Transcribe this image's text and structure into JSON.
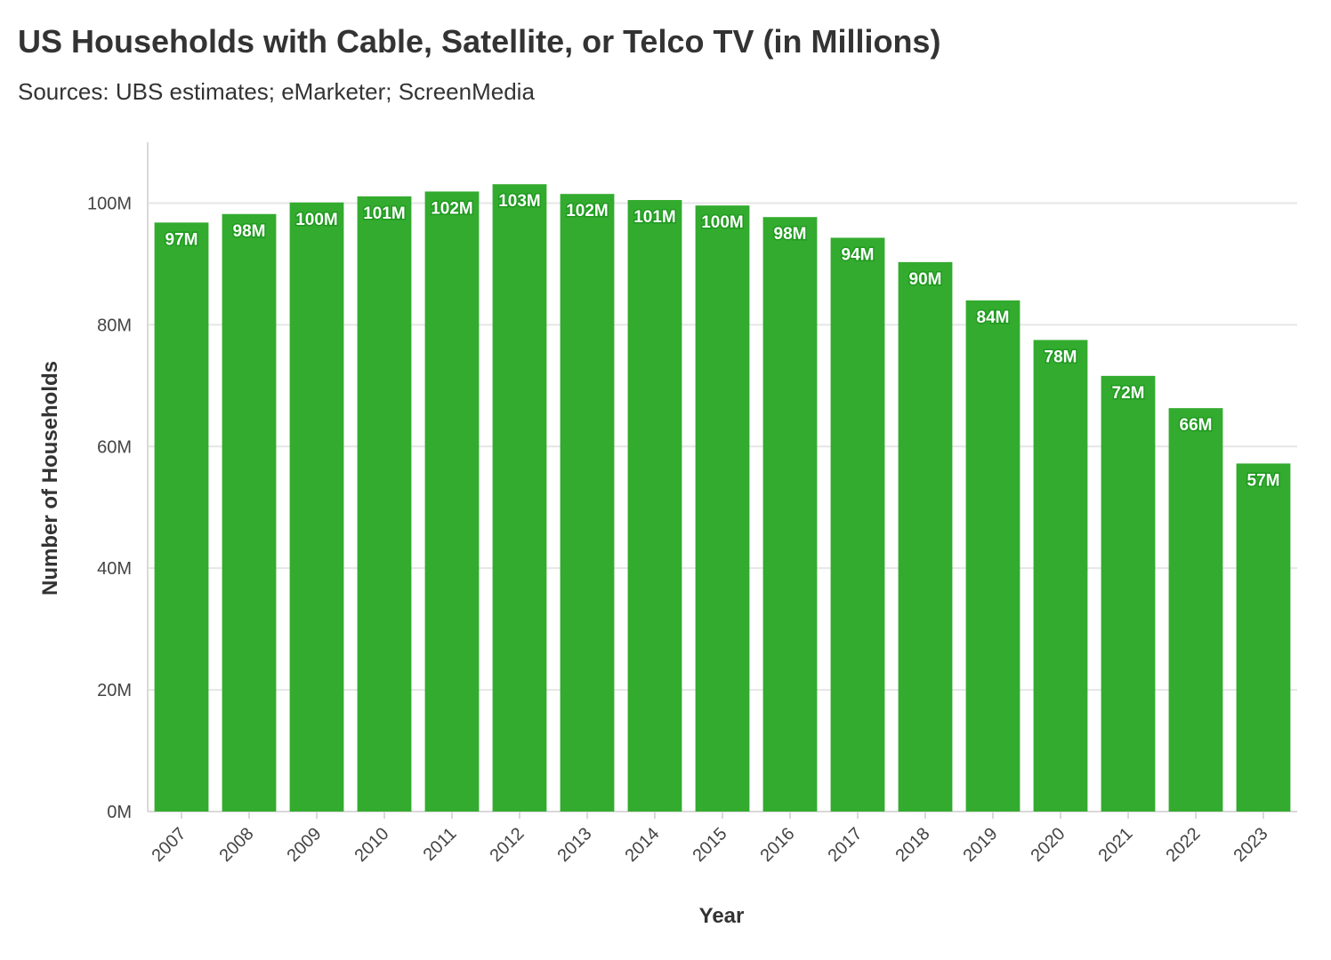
{
  "title": "US Households with Cable, Satellite, or Telco TV (in Millions)",
  "subtitle": "Sources: UBS estimates; eMarketer; ScreenMedia",
  "colors": {
    "bar": "#33ab2f",
    "grid": "#e6e6e6",
    "axis": "#d9d9d9",
    "text": "#333333"
  },
  "chart_data": {
    "type": "bar",
    "xlabel": "Year",
    "ylabel": "Number of Households",
    "ylim": [
      0,
      110
    ],
    "yticks": [
      0,
      20,
      40,
      60,
      80,
      100
    ],
    "ytick_labels": [
      "0M",
      "20M",
      "40M",
      "60M",
      "80M",
      "100M"
    ],
    "grid": true,
    "categories": [
      "2007",
      "2008",
      "2009",
      "2010",
      "2011",
      "2012",
      "2013",
      "2014",
      "2015",
      "2016",
      "2017",
      "2018",
      "2019",
      "2020",
      "2021",
      "2022",
      "2023"
    ],
    "values": [
      96.8,
      98.2,
      100.1,
      101.1,
      101.9,
      103.1,
      101.5,
      100.5,
      99.6,
      97.7,
      94.3,
      90.3,
      84.0,
      77.5,
      71.6,
      66.3,
      57.2
    ],
    "data_labels": [
      "97M",
      "98M",
      "100M",
      "101M",
      "102M",
      "103M",
      "102M",
      "101M",
      "100M",
      "98M",
      "94M",
      "90M",
      "84M",
      "78M",
      "72M",
      "66M",
      "57M"
    ]
  }
}
